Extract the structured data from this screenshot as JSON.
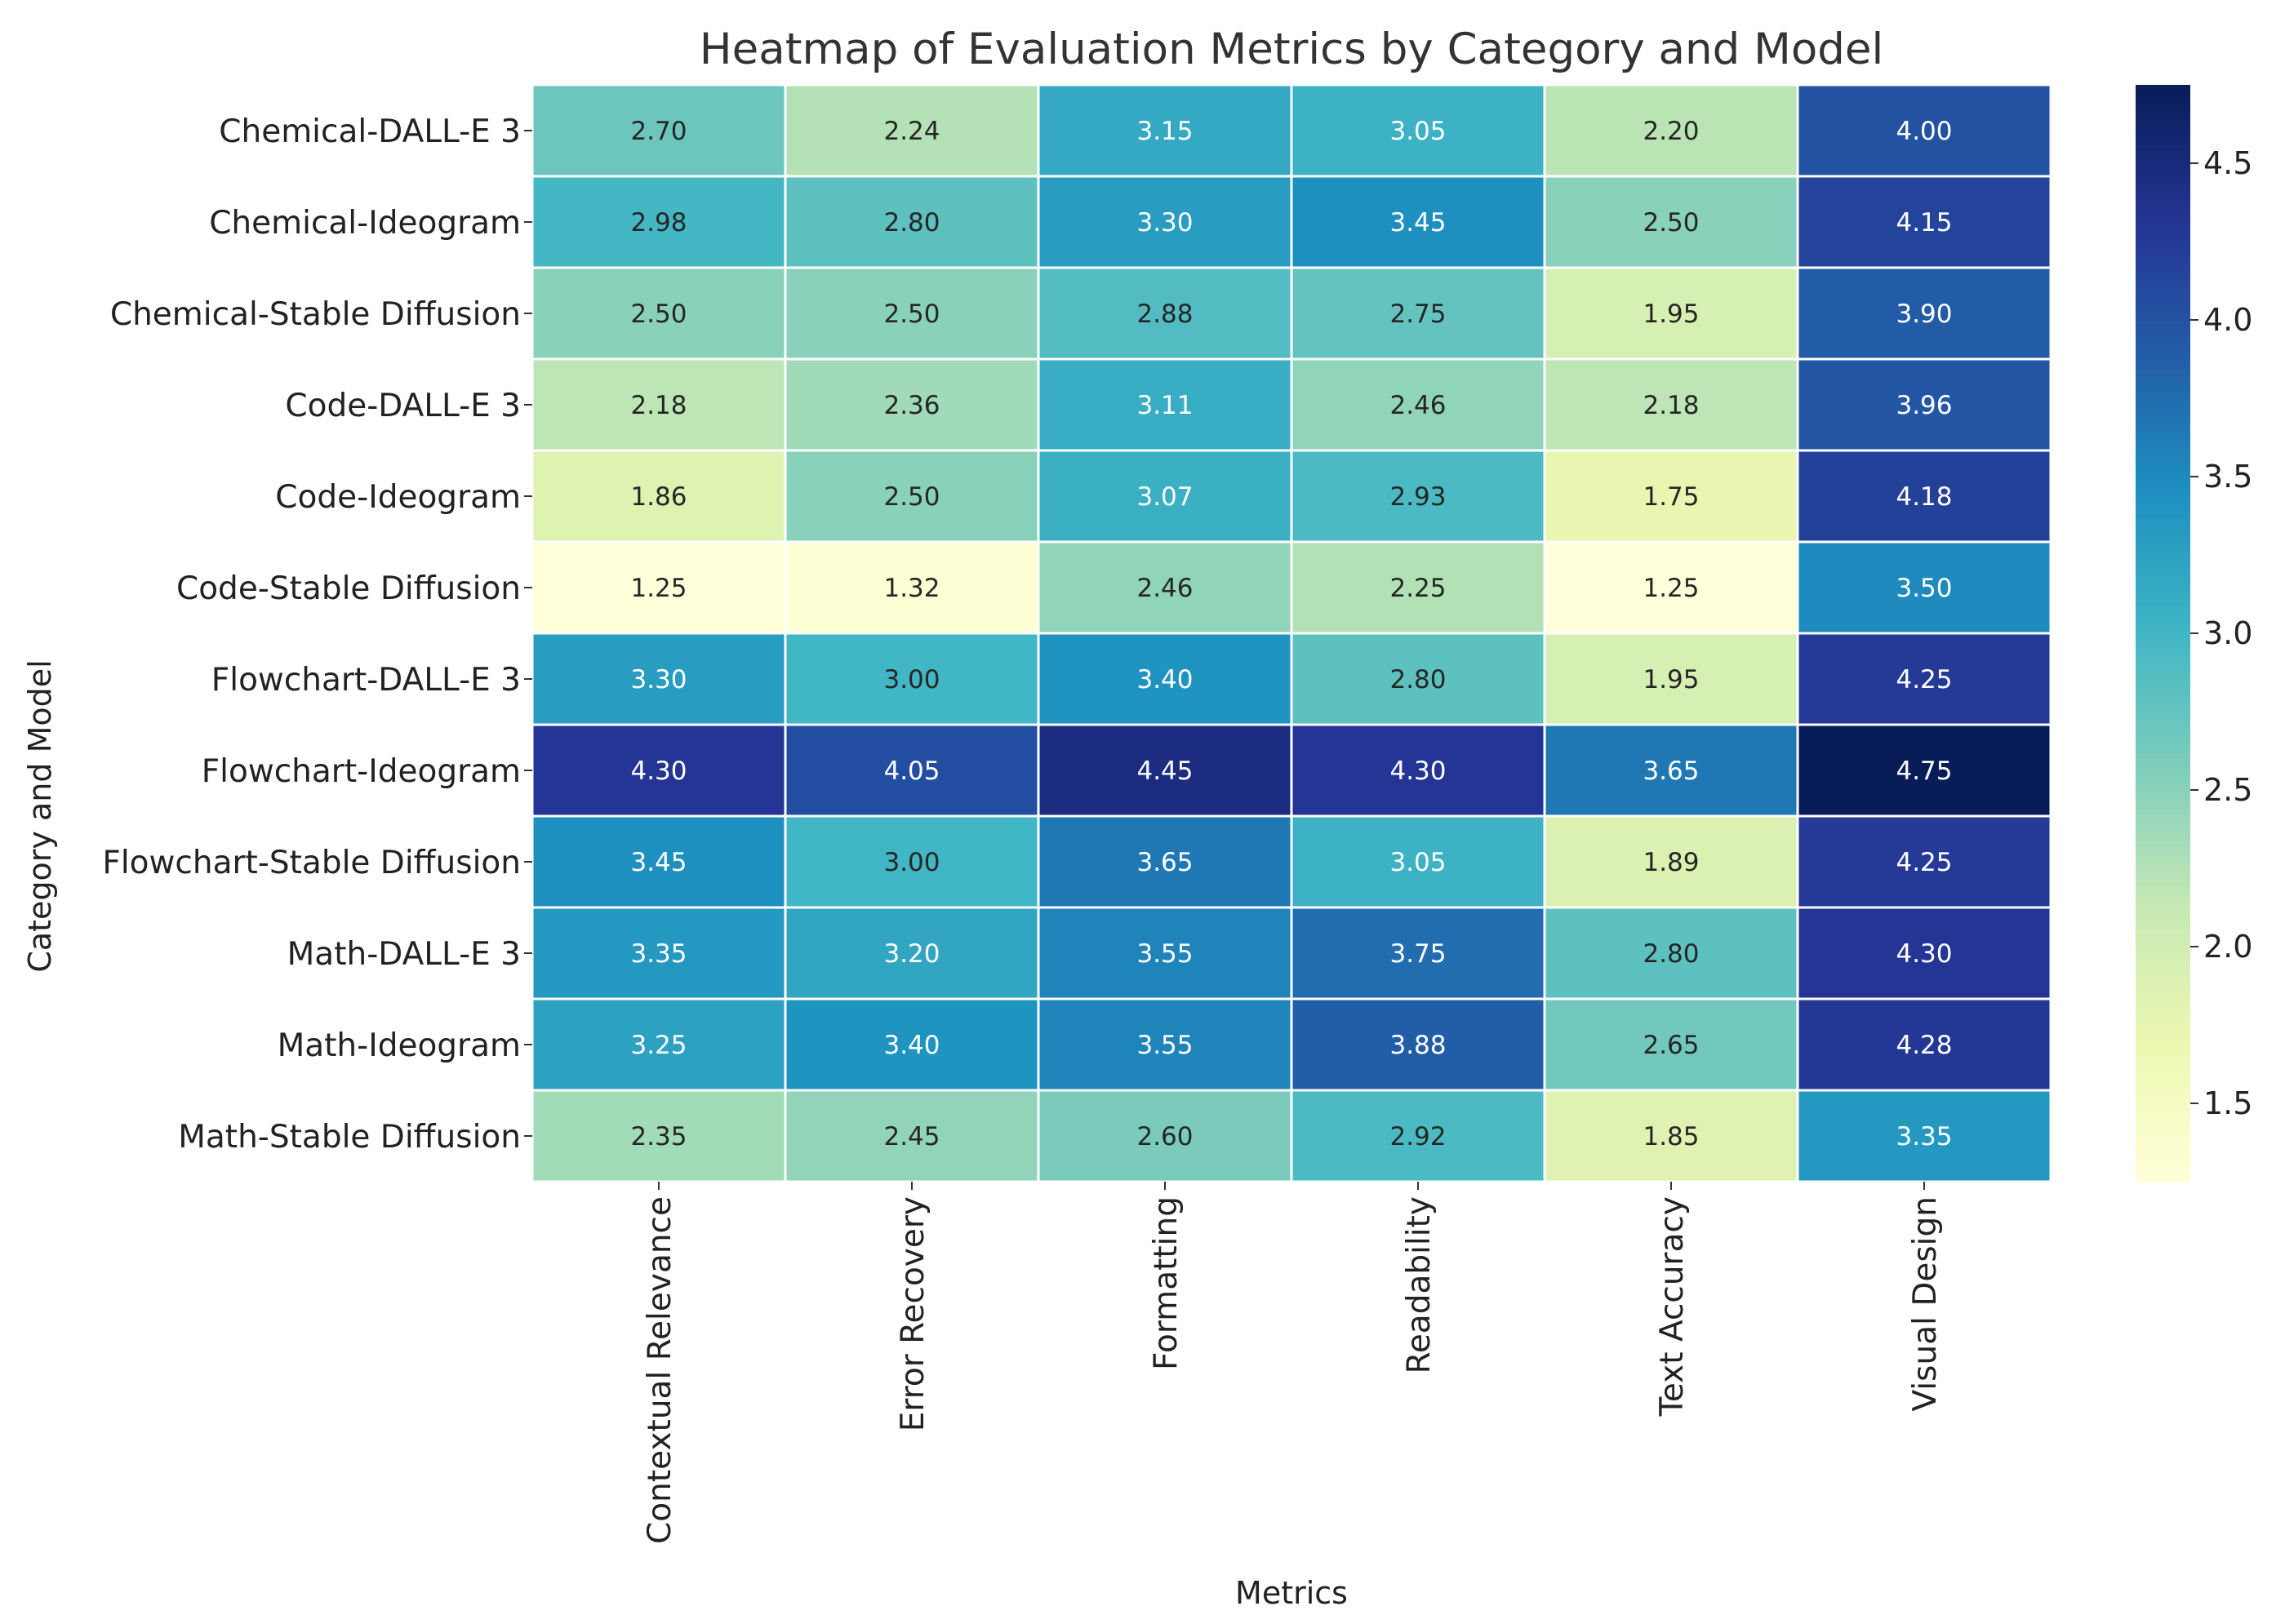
{
  "chart_data": {
    "type": "heatmap",
    "title": "Heatmap of Evaluation Metrics by Category and Model",
    "xlabel": "Metrics",
    "ylabel": "Category and Model",
    "columns": [
      "Contextual Relevance",
      "Error Recovery",
      "Formatting",
      "Readability",
      "Text Accuracy",
      "Visual Design"
    ],
    "rows": [
      "Chemical-DALL-E 3",
      "Chemical-Ideogram",
      "Chemical-Stable Diffusion",
      "Code-DALL-E 3",
      "Code-Ideogram",
      "Code-Stable Diffusion",
      "Flowchart-DALL-E 3",
      "Flowchart-Ideogram",
      "Flowchart-Stable Diffusion",
      "Math-DALL-E 3",
      "Math-Ideogram",
      "Math-Stable Diffusion"
    ],
    "values": [
      [
        2.7,
        2.24,
        3.15,
        3.05,
        2.2,
        4.0
      ],
      [
        2.98,
        2.8,
        3.3,
        3.45,
        2.5,
        4.15
      ],
      [
        2.5,
        2.5,
        2.88,
        2.75,
        1.95,
        3.9
      ],
      [
        2.18,
        2.36,
        3.11,
        2.46,
        2.18,
        3.96
      ],
      [
        1.86,
        2.5,
        3.07,
        2.93,
        1.75,
        4.18
      ],
      [
        1.25,
        1.32,
        2.46,
        2.25,
        1.25,
        3.5
      ],
      [
        3.3,
        3.0,
        3.4,
        2.8,
        1.95,
        4.25
      ],
      [
        4.3,
        4.05,
        4.45,
        4.3,
        3.65,
        4.75
      ],
      [
        3.45,
        3.0,
        3.65,
        3.05,
        1.89,
        4.25
      ],
      [
        3.35,
        3.2,
        3.55,
        3.75,
        2.8,
        4.3
      ],
      [
        3.25,
        3.4,
        3.55,
        3.88,
        2.65,
        4.28
      ],
      [
        2.35,
        2.45,
        2.6,
        2.92,
        1.85,
        3.35
      ]
    ],
    "colormap": "YlGnBu",
    "vmin": 1.25,
    "vmax": 4.75,
    "colorbar_ticks": [
      1.5,
      2.0,
      2.5,
      3.0,
      3.5,
      4.0,
      4.5
    ],
    "annotation_format": "0.2f",
    "grid_line_color": "#ffffff"
  }
}
